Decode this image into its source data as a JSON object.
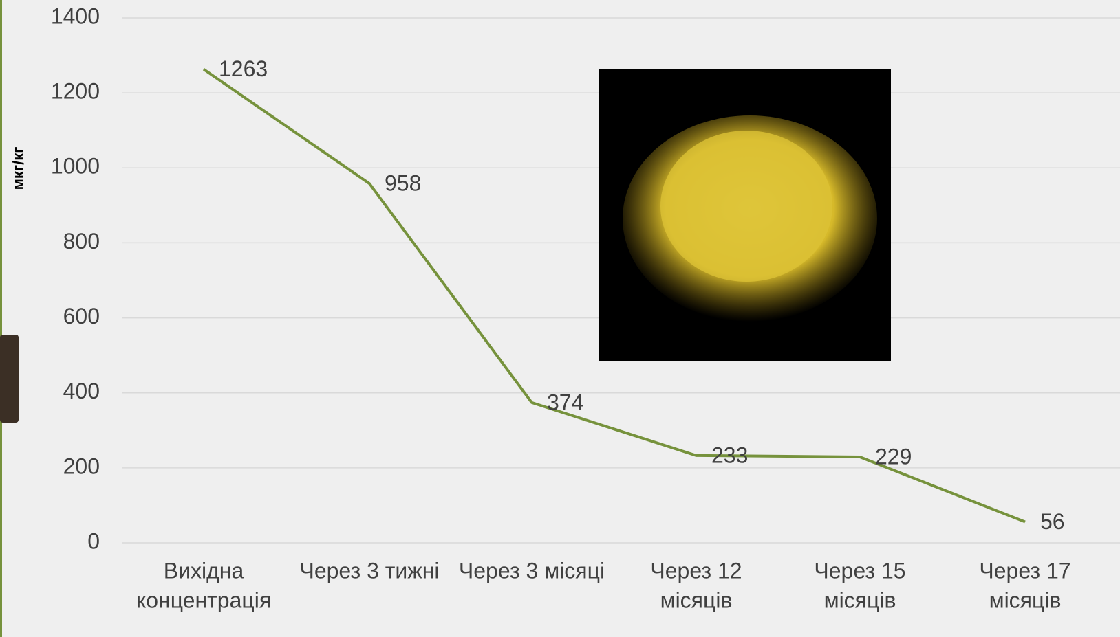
{
  "chart_data": {
    "type": "line",
    "y_label": "мкг/кг",
    "categories": [
      [
        "Вихідна",
        "концентрація"
      ],
      [
        "Через 3 тижні"
      ],
      [
        "Через 3 місяці"
      ],
      [
        "Через 12",
        "місяців"
      ],
      [
        "Через 15",
        "місяців"
      ],
      [
        "Через 17",
        "місяців"
      ]
    ],
    "series": [
      {
        "color": "#76923c",
        "values": [
          1263,
          958,
          374,
          233,
          229,
          56
        ]
      }
    ],
    "ylim": [
      0,
      1400
    ],
    "yticks": [
      0,
      200,
      400,
      600,
      800,
      1000,
      1200,
      1400
    ],
    "grid": true
  }
}
